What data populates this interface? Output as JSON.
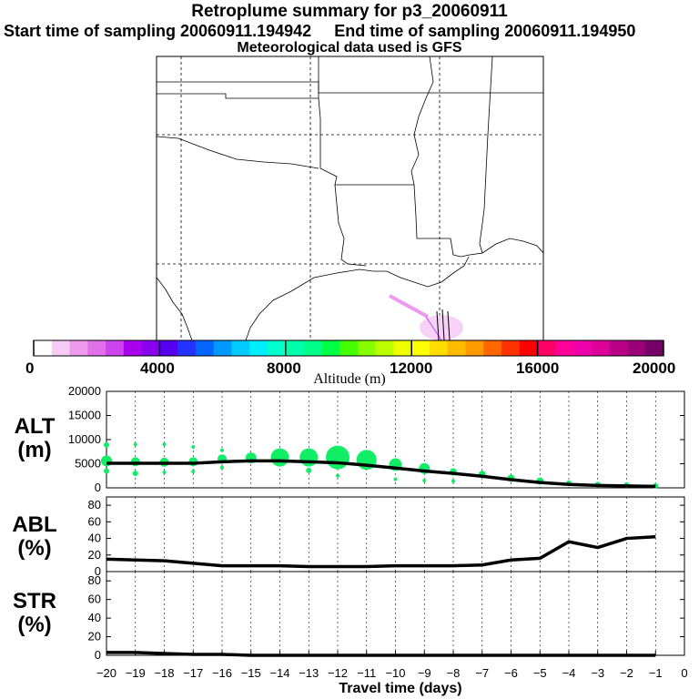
{
  "header": {
    "title": "Retroplume summary for p3_20060911",
    "sampling_line": "Start time of sampling 20060911.194942     End time of sampling 20060911.194950",
    "met_line": "Meteorological data used is GFS"
  },
  "colorbar": {
    "title": "Altitude (m)",
    "ticks": [
      "0",
      "4000",
      "8000",
      "12000",
      "16000",
      "20000"
    ],
    "colors": [
      "#ffffff",
      "#f6ccf6",
      "#ee99ee",
      "#e070e8",
      "#cc44ee",
      "#aa00ee",
      "#8800ee",
      "#5500ee",
      "#2233ff",
      "#0066ff",
      "#0099ff",
      "#00ccff",
      "#00eeff",
      "#00ffcc",
      "#00ffaa",
      "#00ff88",
      "#00ff44",
      "#44ff00",
      "#88ff00",
      "#bbff00",
      "#eeff00",
      "#ffff00",
      "#ffdd00",
      "#ffbb00",
      "#ff9900",
      "#ff6600",
      "#ff3300",
      "#ff0000",
      "#ff0066",
      "#ff0099",
      "#ee00aa",
      "#dd0099",
      "#bb0088",
      "#990077",
      "#770066"
    ]
  },
  "chart_data": [
    {
      "type": "scatter",
      "name": "ALT",
      "panel_label": "ALT\n(m)",
      "x_days": [
        -20,
        -19,
        -18,
        -17,
        -16,
        -15,
        -14,
        -13,
        -12,
        -11,
        -10,
        -9,
        -8,
        -7,
        -6,
        -5,
        -4,
        -3,
        -2,
        -1
      ],
      "line_values": [
        5100,
        5100,
        5100,
        5100,
        5400,
        5600,
        5600,
        5400,
        5200,
        4700,
        4100,
        3500,
        3000,
        2400,
        1700,
        1100,
        700,
        500,
        400,
        300
      ],
      "bubbles": [
        {
          "x": -20,
          "y": 5600,
          "r": 6
        },
        {
          "x": -20,
          "y": 8900,
          "r": 3
        },
        {
          "x": -20,
          "y": 3500,
          "r": 3
        },
        {
          "x": -19,
          "y": 5400,
          "r": 5
        },
        {
          "x": -19,
          "y": 9000,
          "r": 2
        },
        {
          "x": -19,
          "y": 3000,
          "r": 3
        },
        {
          "x": -18,
          "y": 5300,
          "r": 5
        },
        {
          "x": -18,
          "y": 9000,
          "r": 2
        },
        {
          "x": -18,
          "y": 3200,
          "r": 2
        },
        {
          "x": -17,
          "y": 5400,
          "r": 5
        },
        {
          "x": -17,
          "y": 8500,
          "r": 2
        },
        {
          "x": -17,
          "y": 3400,
          "r": 2
        },
        {
          "x": -16,
          "y": 6000,
          "r": 5
        },
        {
          "x": -16,
          "y": 7800,
          "r": 2
        },
        {
          "x": -16,
          "y": 4200,
          "r": 2
        },
        {
          "x": -15,
          "y": 6200,
          "r": 6
        },
        {
          "x": -14,
          "y": 6300,
          "r": 10
        },
        {
          "x": -13,
          "y": 6300,
          "r": 10
        },
        {
          "x": -13,
          "y": 3600,
          "r": 3
        },
        {
          "x": -12,
          "y": 6300,
          "r": 13
        },
        {
          "x": -12,
          "y": 2500,
          "r": 2
        },
        {
          "x": -11,
          "y": 5800,
          "r": 11
        },
        {
          "x": -10,
          "y": 4800,
          "r": 7
        },
        {
          "x": -10,
          "y": 1800,
          "r": 2
        },
        {
          "x": -9,
          "y": 4000,
          "r": 6
        },
        {
          "x": -9,
          "y": 1500,
          "r": 2
        },
        {
          "x": -8,
          "y": 3300,
          "r": 4
        },
        {
          "x": -8,
          "y": 1400,
          "r": 2
        },
        {
          "x": -7,
          "y": 2800,
          "r": 4
        },
        {
          "x": -6,
          "y": 2000,
          "r": 4
        },
        {
          "x": -5,
          "y": 1400,
          "r": 4
        },
        {
          "x": -4,
          "y": 1000,
          "r": 3
        },
        {
          "x": -3,
          "y": 700,
          "r": 3
        },
        {
          "x": -2,
          "y": 600,
          "r": 3
        },
        {
          "x": -1,
          "y": 400,
          "r": 3
        }
      ],
      "bubble_color": "#11ee66",
      "yticks": [
        "0",
        "5000",
        "10000",
        "15000",
        "20000"
      ],
      "ylim": [
        0,
        20000
      ]
    },
    {
      "type": "line",
      "name": "ABL",
      "panel_label": "ABL\n(%)",
      "x_days": [
        -20,
        -19,
        -18,
        -17,
        -16,
        -15,
        -14,
        -13,
        -12,
        -11,
        -10,
        -9,
        -8,
        -7,
        -6,
        -5,
        -4,
        -3,
        -2,
        -1
      ],
      "values": [
        15,
        14,
        13,
        10,
        7,
        7,
        7,
        6,
        6,
        6,
        7,
        7,
        7,
        8,
        14,
        16,
        36,
        29,
        40,
        42
      ],
      "yticks": [
        "0",
        "20",
        "40",
        "60",
        "80"
      ],
      "ylim": [
        0,
        90
      ]
    },
    {
      "type": "line",
      "name": "STR",
      "panel_label": "STR\n(%)",
      "x_days": [
        -20,
        -19,
        -18,
        -17,
        -16,
        -15,
        -14,
        -13,
        -12,
        -11,
        -10,
        -9,
        -8,
        -7,
        -6,
        -5,
        -4,
        -3,
        -2,
        -1
      ],
      "values": [
        3,
        3,
        2,
        1,
        1,
        0,
        0,
        0,
        0,
        0,
        0,
        0,
        0,
        0,
        0,
        0,
        0,
        0,
        0,
        0
      ],
      "yticks": [
        "0",
        "20",
        "40",
        "60",
        "80"
      ],
      "ylim": [
        0,
        90
      ]
    }
  ],
  "xaxis": {
    "label": "Travel time (days)",
    "ticks": [
      "-20",
      "-19",
      "-18",
      "-17",
      "-16",
      "-15",
      "-14",
      "-13",
      "-12",
      "-11",
      "-10",
      "-9",
      "-8",
      "-7",
      "-6",
      "-5",
      "-4",
      "-3",
      "-2",
      "-1",
      "0"
    ]
  }
}
